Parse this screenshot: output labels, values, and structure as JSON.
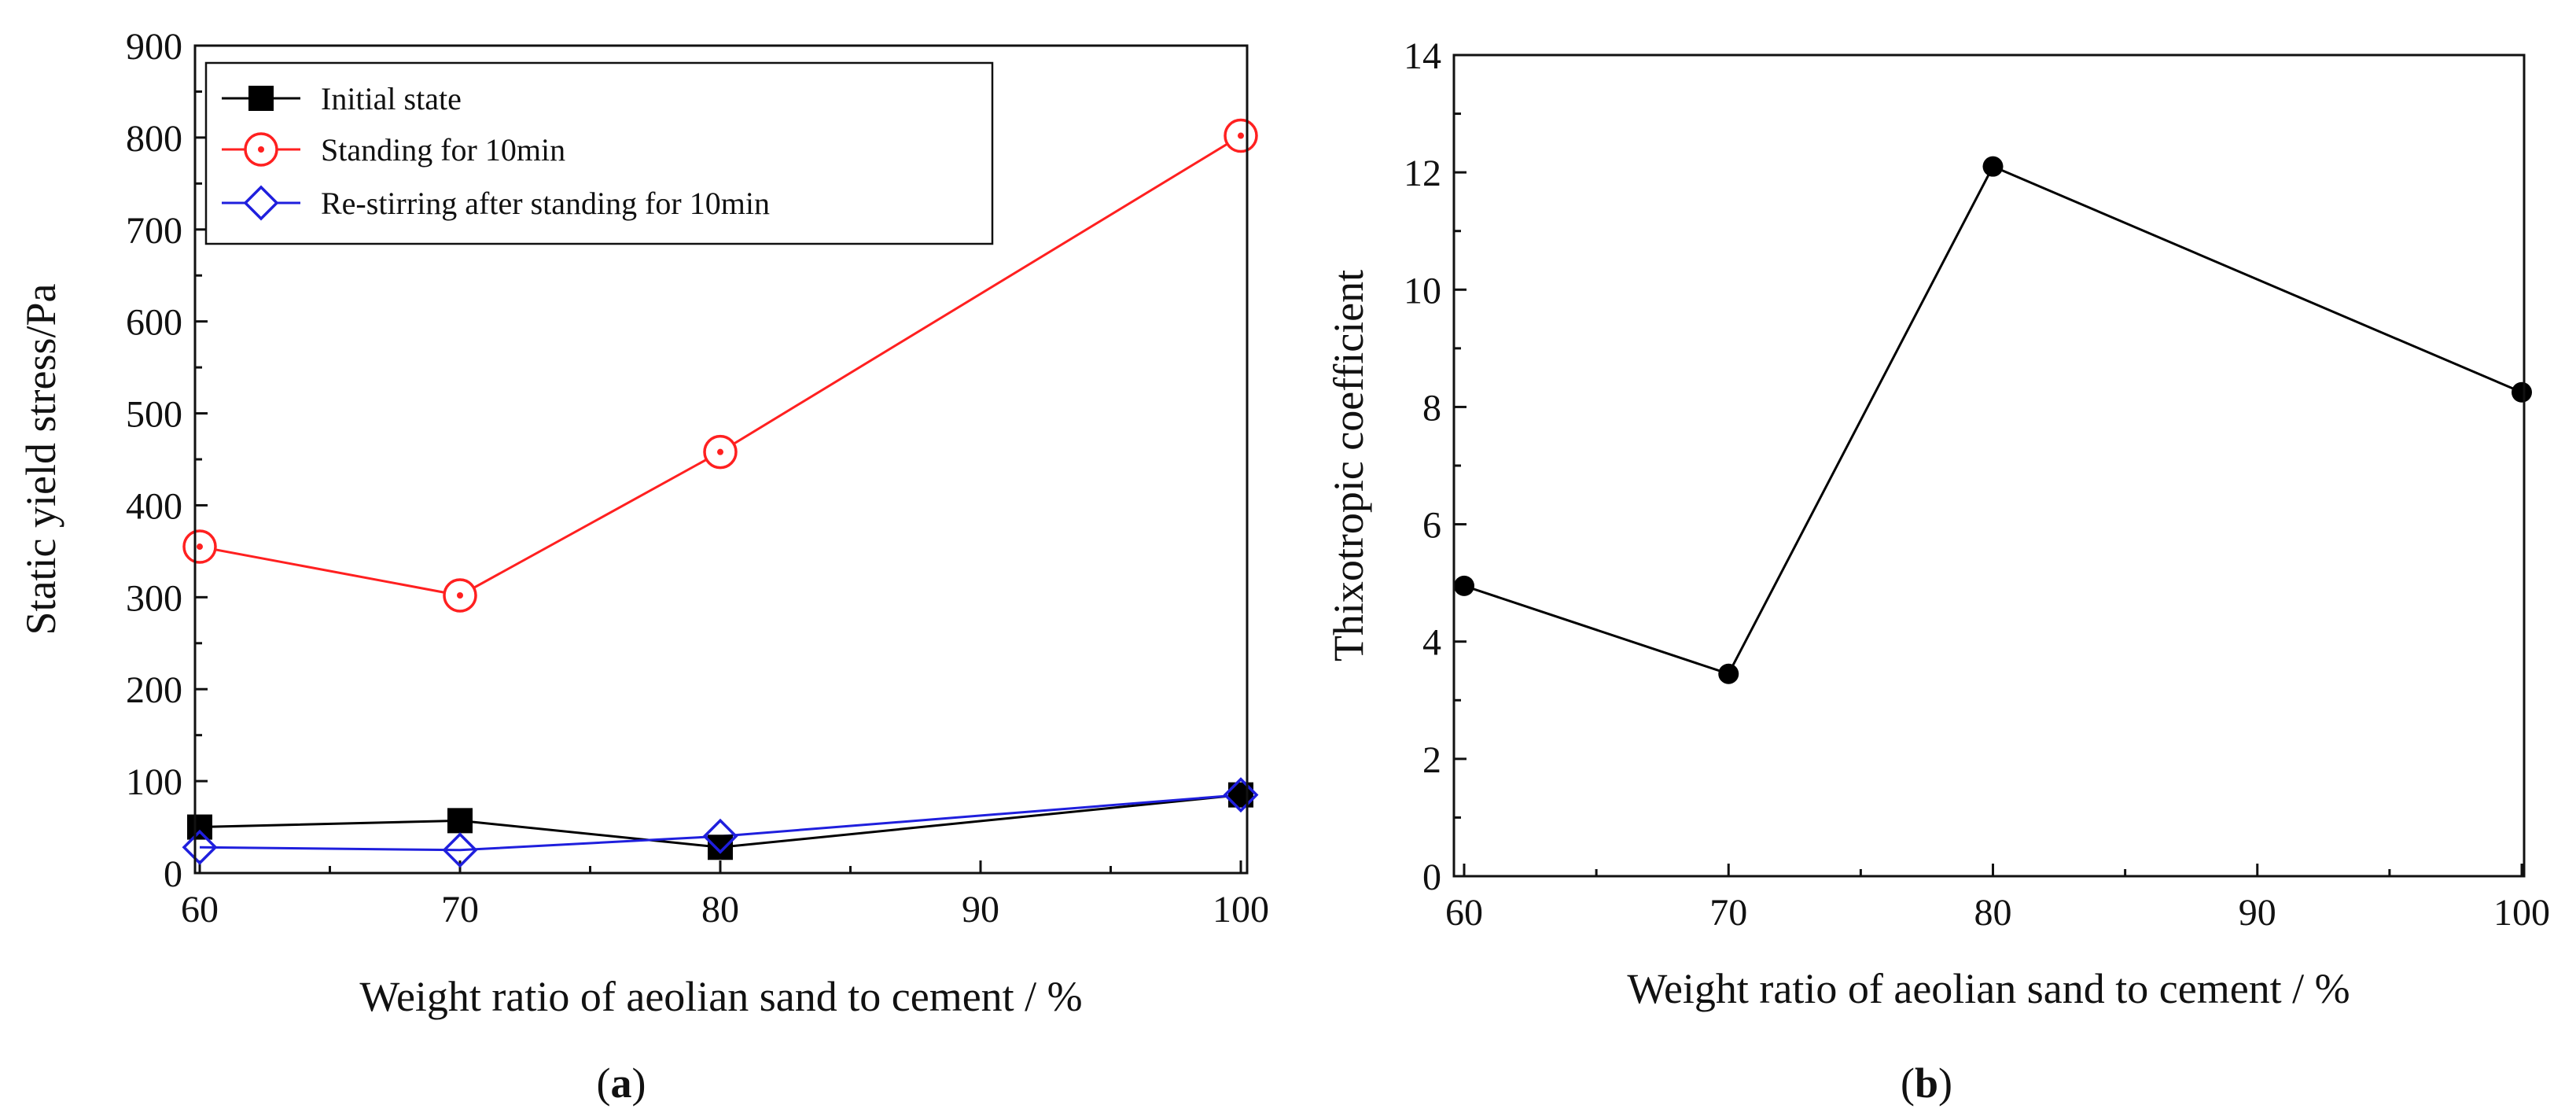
{
  "chart_data": [
    {
      "panel": "a",
      "type": "line",
      "title": "",
      "xlabel": "Weight ratio of aeolian sand to cement / %",
      "ylabel": "Static yield stress/Pa",
      "xlim": [
        60,
        100
      ],
      "ylim": [
        0,
        900
      ],
      "xticks": [
        60,
        70,
        80,
        90,
        100
      ],
      "yticks": [
        0,
        100,
        200,
        300,
        400,
        500,
        600,
        700,
        800,
        900
      ],
      "legend_position": "top-left",
      "series": [
        {
          "name": "Initial state",
          "color": "#000000",
          "marker": "filled-square",
          "x": [
            60,
            70,
            80,
            100
          ],
          "y": [
            50,
            57,
            28,
            85
          ]
        },
        {
          "name": "Standing for 10min",
          "color": "#ff2020",
          "marker": "circle-dot",
          "x": [
            60,
            70,
            80,
            100
          ],
          "y": [
            355,
            302,
            458,
            802
          ]
        },
        {
          "name": "Re-stirring after standing for 10min",
          "color": "#1f1fdd",
          "marker": "open-diamond",
          "x": [
            60,
            70,
            80,
            100
          ],
          "y": [
            28,
            25,
            40,
            85
          ]
        }
      ],
      "caption_pre": "(",
      "caption_letter": "a",
      "caption_post": ")"
    },
    {
      "panel": "b",
      "type": "line",
      "title": "",
      "xlabel": "Weight ratio of aeolian sand to cement / %",
      "ylabel": "Thixotropic coefficient",
      "xlim": [
        60,
        100
      ],
      "ylim": [
        0,
        14
      ],
      "xticks": [
        60,
        70,
        80,
        90,
        100
      ],
      "yticks": [
        0,
        2,
        4,
        6,
        8,
        10,
        12,
        14
      ],
      "series": [
        {
          "name": "Thixotropic coefficient",
          "color": "#000000",
          "marker": "filled-circle",
          "x": [
            60,
            70,
            80,
            100
          ],
          "y": [
            4.95,
            3.45,
            12.1,
            8.25
          ]
        }
      ],
      "caption_pre": "(",
      "caption_letter": "b",
      "caption_post": ")"
    }
  ]
}
